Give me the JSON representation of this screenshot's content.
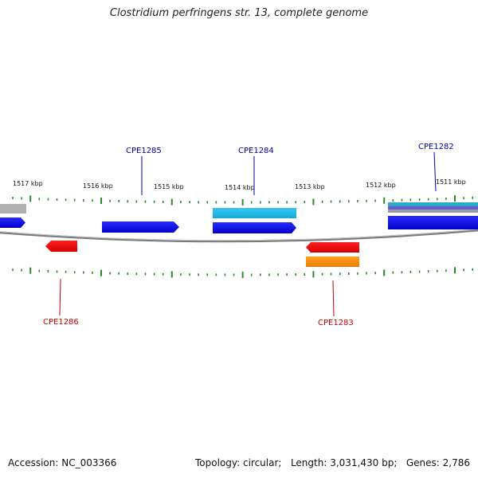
{
  "title": "Clostridium perfringens str. 13, complete genome",
  "accession": "Accession: NC_003366",
  "summary": {
    "topology": "Topology: circular;",
    "length": "Length: 3,031,430 bp;",
    "genes": "Genes: 2,786"
  },
  "scale_labels": [
    "1517 kbp",
    "1516 kbp",
    "1515 kbp",
    "1514 kbp",
    "1513 kbp",
    "1512 kbp",
    "1511 kbp"
  ],
  "gene_labels": {
    "forward": [
      "CPE1285",
      "CPE1284",
      "CPE1282"
    ],
    "reverse": [
      "CPE1286",
      "CPE1283"
    ]
  },
  "colors": {
    "forward_cds": "#0a0ae0",
    "reverse_cds": "#ee0000",
    "rna": "#1ab8e6",
    "orange": "#ff8c00",
    "gray": "#a9a9a9",
    "forward_label": "#0000aa",
    "reverse_label": "#cc0000",
    "tick": "#2a8a2a",
    "backbone": "#808080"
  }
}
